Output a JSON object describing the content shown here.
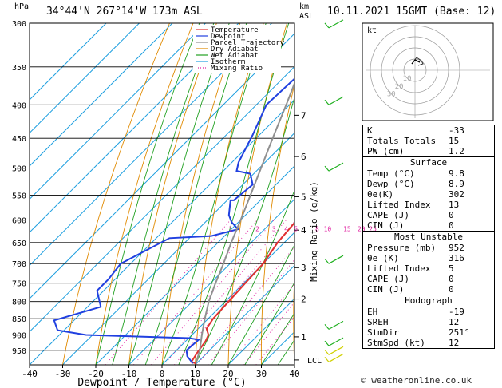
{
  "header": {
    "location": "34°44'N  267°14'W  173m  ASL",
    "datetime": "10.11.2021  15GMT  (Base: 12)",
    "hpa_label": "hPa",
    "km_label": "km",
    "asl_label": "ASL"
  },
  "footer": "© weatheronline.co.uk",
  "chart_data": {
    "type": "line",
    "chart_kind": "Skew-T log-P",
    "xlabel": "Dewpoint / Temperature (°C)",
    "ylabel": "Mixing Ratio (g/kg)",
    "x_ticks": [
      -40,
      -30,
      -20,
      -10,
      0,
      10,
      20,
      30,
      40
    ],
    "pressure_levels": [
      300,
      350,
      400,
      450,
      500,
      550,
      600,
      650,
      700,
      750,
      800,
      850,
      900,
      950
    ],
    "km_ticks": [
      {
        "label": "7",
        "p": 415
      },
      {
        "label": "6",
        "p": 480
      },
      {
        "label": "5",
        "p": 553
      },
      {
        "label": "4",
        "p": 622
      },
      {
        "label": "3",
        "p": 710
      },
      {
        "label": "2",
        "p": 793
      },
      {
        "label": "1",
        "p": 906
      }
    ],
    "lcl_label": "LCL",
    "lcl_p": 983,
    "mixing_ratio_labels": [
      "1",
      "2",
      "3",
      "4",
      "5",
      "8",
      "10",
      "15",
      "20",
      "25"
    ],
    "mixing_ratio_values": [
      1,
      2,
      3,
      4,
      5,
      8,
      10,
      15,
      20,
      25
    ],
    "legend": [
      {
        "name": "Temperature",
        "color": "#e03030",
        "style": "solid"
      },
      {
        "name": "Dewpoint",
        "color": "#2040e0",
        "style": "solid"
      },
      {
        "name": "Parcel Trajectory",
        "color": "#909090",
        "style": "solid"
      },
      {
        "name": "Dry Adiabat",
        "color": "#e08a00",
        "style": "solid"
      },
      {
        "name": "Wet Adiabat",
        "color": "#20a020",
        "style": "solid"
      },
      {
        "name": "Isotherm",
        "color": "#20a0e0",
        "style": "solid"
      },
      {
        "name": "Mixing Ratio",
        "color": "#e020a0",
        "style": "dotted"
      }
    ],
    "series": [
      {
        "name": "Temperature",
        "color": "#e03030",
        "points": [
          [
            -16.5,
            300
          ],
          [
            -14,
            350
          ],
          [
            -12,
            400
          ],
          [
            -10.5,
            450
          ],
          [
            -8.5,
            500
          ],
          [
            -5,
            540
          ],
          [
            -4.5,
            550
          ],
          [
            -3,
            600
          ],
          [
            -2,
            650
          ],
          [
            0,
            700
          ],
          [
            0.5,
            750
          ],
          [
            1,
            800
          ],
          [
            1.5,
            850
          ],
          [
            2.5,
            880
          ],
          [
            5,
            900
          ],
          [
            6,
            920
          ],
          [
            7,
            960
          ],
          [
            8,
            990
          ],
          [
            9.8,
            995
          ]
        ]
      },
      {
        "name": "Dewpoint",
        "color": "#2040e0",
        "points": [
          [
            -45,
            300
          ],
          [
            -47,
            400
          ],
          [
            -42,
            445
          ],
          [
            -38,
            490
          ],
          [
            -36,
            505
          ],
          [
            -31,
            510
          ],
          [
            -27,
            530
          ],
          [
            -28,
            560
          ],
          [
            -29,
            560
          ],
          [
            -25,
            590
          ],
          [
            -22,
            605
          ],
          [
            -18,
            620
          ],
          [
            -24,
            635
          ],
          [
            -36,
            640
          ],
          [
            -43,
            700
          ],
          [
            -42,
            740
          ],
          [
            -42,
            770
          ],
          [
            -36,
            815
          ],
          [
            -46,
            855
          ],
          [
            -42,
            885
          ],
          [
            -32,
            900
          ],
          [
            0,
            910
          ],
          [
            3.5,
            915
          ],
          [
            3,
            950
          ],
          [
            5,
            970
          ],
          [
            8.9,
            995
          ]
        ]
      },
      {
        "name": "Parcel Trajectory",
        "color": "#909090",
        "points": [
          [
            9.8,
            995
          ],
          [
            7,
            950
          ],
          [
            3,
            900
          ],
          [
            -1,
            850
          ],
          [
            -5,
            800
          ],
          [
            -8.5,
            750
          ],
          [
            -12,
            700
          ],
          [
            -16,
            650
          ],
          [
            -20,
            600
          ],
          [
            -24.5,
            550
          ],
          [
            -29.5,
            500
          ],
          [
            -35,
            450
          ],
          [
            -41,
            400
          ],
          [
            -48,
            350
          ],
          [
            -56,
            300
          ]
        ]
      }
    ],
    "wind_barbs_p": [
      305,
      400,
      505,
      700,
      882,
      935,
      965,
      990
    ],
    "hodograph": {
      "title": "kt",
      "ring_labels": [
        "10",
        "20",
        "30"
      ]
    }
  },
  "indices": [
    {
      "label": "K",
      "value": "-33"
    },
    {
      "label": "Totals Totals",
      "value": "15"
    },
    {
      "label": "PW (cm)",
      "value": "1.2"
    }
  ],
  "surface": {
    "title": "Surface",
    "rows": [
      {
        "label": "Temp (°C)",
        "value": "9.8"
      },
      {
        "label": "Dewp (°C)",
        "value": "8.9"
      },
      {
        "label": "θe(K)",
        "value": "302"
      },
      {
        "label": "Lifted Index",
        "value": "13"
      },
      {
        "label": "CAPE (J)",
        "value": "0"
      },
      {
        "label": "CIN (J)",
        "value": "0"
      }
    ]
  },
  "most_unstable": {
    "title": "Most Unstable",
    "rows": [
      {
        "label": "Pressure (mb)",
        "value": "952"
      },
      {
        "label": "θe (K)",
        "value": "316"
      },
      {
        "label": "Lifted Index",
        "value": "5"
      },
      {
        "label": "CAPE (J)",
        "value": "0"
      },
      {
        "label": "CIN (J)",
        "value": "0"
      }
    ]
  },
  "hodograph_table": {
    "title": "Hodograph",
    "rows": [
      {
        "label": "EH",
        "value": "-19"
      },
      {
        "label": "SREH",
        "value": "12"
      },
      {
        "label": "StmDir",
        "value": "251°"
      },
      {
        "label": "StmSpd (kt)",
        "value": "12"
      }
    ]
  }
}
